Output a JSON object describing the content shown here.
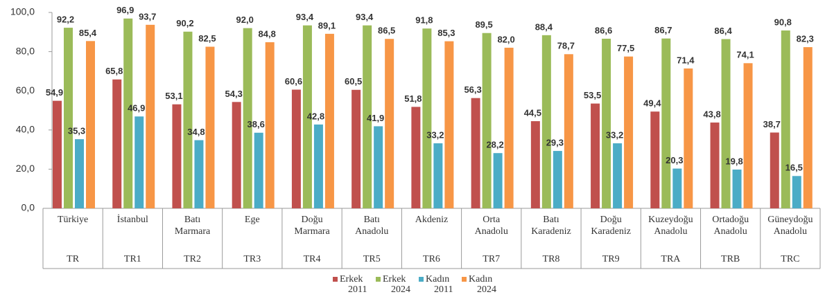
{
  "chart_data": {
    "type": "bar",
    "categories": [
      "Türkiye",
      "İstanbul",
      "Batı Marmara",
      "Ege",
      "Doğu Marmara",
      "Batı Anadolu",
      "Akdeniz",
      "Orta Anadolu",
      "Batı Karadeniz",
      "Doğu Karadeniz",
      "Kuzeydoğu Anadolu",
      "Ortadoğu Anadolu",
      "Güneydoğu Anadolu"
    ],
    "codes": [
      "TR",
      "TR1",
      "TR2",
      "TR3",
      "TR4",
      "TR5",
      "TR6",
      "TR7",
      "TR8",
      "TR9",
      "TRA",
      "TRB",
      "TRC"
    ],
    "series": [
      {
        "name": "Erkek 2011",
        "color": "#c0504d",
        "values": [
          54.9,
          65.8,
          53.1,
          54.3,
          60.6,
          60.5,
          51.8,
          56.3,
          44.5,
          53.5,
          49.4,
          43.8,
          38.7
        ],
        "value_labels": [
          "54,9",
          "65,8",
          "53,1",
          "54,3",
          "60,6",
          "60,5",
          "51,8",
          "56,3",
          "44,5",
          "53,5",
          "49,4",
          "43,8",
          "38,7"
        ]
      },
      {
        "name": "Erkek 2024",
        "color": "#9bbb59",
        "values": [
          92.2,
          96.9,
          90.2,
          92.0,
          93.4,
          93.4,
          91.8,
          89.5,
          88.4,
          86.6,
          86.7,
          86.4,
          90.8
        ],
        "value_labels": [
          "92,2",
          "96,9",
          "90,2",
          "92,0",
          "93,4",
          "93,4",
          "91,8",
          "89,5",
          "88,4",
          "86,6",
          "86,7",
          "86,4",
          "90,8"
        ]
      },
      {
        "name": "Kadın 2011",
        "color": "#4bacc6",
        "values": [
          35.3,
          46.9,
          34.8,
          38.6,
          42.8,
          41.9,
          33.2,
          28.2,
          29.3,
          33.2,
          20.3,
          19.8,
          16.5
        ],
        "value_labels": [
          "35,3",
          "46,9",
          "34,8",
          "38,6",
          "42,8",
          "41,9",
          "33,2",
          "28,2",
          "29,3",
          "33,2",
          "20,3",
          "19,8",
          "16,5"
        ]
      },
      {
        "name": "Kadın 2024",
        "color": "#f79646",
        "values": [
          85.4,
          93.7,
          82.5,
          84.8,
          89.1,
          86.5,
          85.3,
          82.0,
          78.7,
          77.5,
          71.4,
          74.1,
          82.3
        ],
        "value_labels": [
          "85,4",
          "93,7",
          "82,5",
          "84,8",
          "89,1",
          "86,5",
          "85,3",
          "82,0",
          "78,7",
          "77,5",
          "71,4",
          "74,1",
          "82,3"
        ]
      }
    ],
    "ylim": [
      0,
      100
    ],
    "yticks": [
      {
        "value": 0,
        "label": "0,0"
      },
      {
        "value": 20,
        "label": "20,0"
      },
      {
        "value": 40,
        "label": "40,0"
      },
      {
        "value": 60,
        "label": "60,0"
      },
      {
        "value": 80,
        "label": "80,0"
      },
      {
        "value": 100,
        "label": "100,0"
      }
    ],
    "legend": "bottom"
  }
}
